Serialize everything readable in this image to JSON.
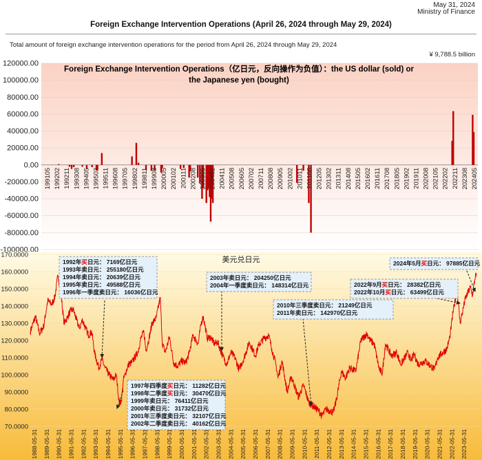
{
  "header": {
    "date": "May 31, 2024",
    "ministry": "Ministry of Finance",
    "title": "Foreign Exchange Intervention Operations (April 26, 2024 through May 29, 2024)",
    "description": "Total amount of foreign exchange intervention operations for the period from April 26, 2024 through May 29, 2024",
    "total_amount": "¥    9,788.5 billion"
  },
  "colors": {
    "bar_red": "#c00000",
    "line_red": "#e00000",
    "top_gradient_top": "#fbd2c4",
    "top_gradient_bottom": "#ffffff",
    "bottom_gradient_top": "#fffbe6",
    "bottom_gradient_bottom": "#f8bb3a",
    "callout_fill": "#e4f0fa",
    "callout_highlight": "#e00000"
  },
  "chart_data": [
    {
      "type": "bar",
      "title_line1": "Foreign Exchange Intervention Operations（亿日元，反向操作为负值）：the US dollar (sold)  or",
      "title_line2": "the Japanese yen (bought)",
      "ylim": [
        -100000,
        120000
      ],
      "yticks": [
        "120000.00",
        "100000.00",
        "80000.00",
        "60000.00",
        "40000.00",
        "20000.00",
        "0.00",
        "-20000.00",
        "-40000.00",
        "-60000.00",
        "-80000.00",
        "-100000.00"
      ],
      "categories": [
        "199105",
        "199202",
        "199211",
        "199308",
        "199405",
        "199502",
        "199511",
        "199608",
        "199705",
        "199802",
        "199811",
        "199908",
        "200005",
        "200102",
        "200111",
        "200208",
        "200305",
        "200402",
        "200411",
        "200508",
        "200605",
        "200702",
        "200711",
        "200808",
        "200905",
        "201002",
        "201011",
        "201108",
        "201205",
        "201302",
        "201311",
        "201408",
        "201505",
        "201602",
        "201611",
        "201708",
        "201805",
        "201902",
        "201911",
        "202008",
        "202105",
        "202202",
        "202211",
        "202308",
        "202405"
      ],
      "approx_monthly_values": [
        {
          "month": "199204",
          "value": 900
        },
        {
          "month": "199302",
          "value": -2200
        },
        {
          "month": "199304",
          "value": -4800
        },
        {
          "month": "199306",
          "value": -2600
        },
        {
          "month": "199402",
          "value": -2100
        },
        {
          "month": "199406",
          "value": -4800
        },
        {
          "month": "199411",
          "value": -2600
        },
        {
          "month": "199503",
          "value": -6700
        },
        {
          "month": "199504",
          "value": -5500
        },
        {
          "month": "199508",
          "value": 14000
        },
        {
          "month": "199712",
          "value": 10000
        },
        {
          "month": "199804",
          "value": 26000
        },
        {
          "month": "199806",
          "value": 2600
        },
        {
          "month": "199901",
          "value": -6200
        },
        {
          "month": "199906",
          "value": -7000
        },
        {
          "month": "199909",
          "value": -6200
        },
        {
          "month": "200003",
          "value": -9000
        },
        {
          "month": "200004",
          "value": -4400
        },
        {
          "month": "200109",
          "value": -4800
        },
        {
          "month": "200112",
          "value": -3700
        },
        {
          "month": "200205",
          "value": -15000
        },
        {
          "month": "200206",
          "value": -7700
        },
        {
          "month": "200301",
          "value": -15000
        },
        {
          "month": "200303",
          "value": -22000
        },
        {
          "month": "200305",
          "value": -40000
        },
        {
          "month": "200306",
          "value": -27000
        },
        {
          "month": "200309",
          "value": -45000
        },
        {
          "month": "200310",
          "value": -30000
        },
        {
          "month": "200311",
          "value": -28000
        },
        {
          "month": "200312",
          "value": -38000
        },
        {
          "month": "200401",
          "value": -67000
        },
        {
          "month": "200402",
          "value": -40000
        },
        {
          "month": "200403",
          "value": -45000
        },
        {
          "month": "201009",
          "value": -21249
        },
        {
          "month": "201103",
          "value": -6900
        },
        {
          "month": "201108",
          "value": -45000
        },
        {
          "month": "201110",
          "value": -80000
        },
        {
          "month": "202209",
          "value": 28382
        },
        {
          "month": "202210",
          "value": 63499
        },
        {
          "month": "202404",
          "value": 59185
        },
        {
          "month": "202405",
          "value": 38700
        }
      ]
    },
    {
      "type": "line",
      "title": "美元兑日元",
      "ylim": [
        70,
        170
      ],
      "yticks": [
        "170.0000",
        "160.0000",
        "150.0000",
        "140.0000",
        "130.0000",
        "120.0000",
        "110.0000",
        "100.0000",
        "90.0000",
        "80.0000",
        "70.0000"
      ],
      "xticks": [
        "1988-05-31",
        "1989-05-31",
        "1990-05-31",
        "1991-05-31",
        "1992-05-31",
        "1993-05-31",
        "1994-05-31",
        "1995-05-31",
        "1996-05-31",
        "1997-05-31",
        "1998-05-31",
        "1999-05-31",
        "2000-05-31",
        "2001-05-31",
        "2002-05-31",
        "2003-05-31",
        "2004-05-31",
        "2005-05-31",
        "2006-05-31",
        "2007-05-31",
        "2008-05-31",
        "2009-05-31",
        "2010-05-31",
        "2011-05-31",
        "2012-05-31",
        "2013-05-31",
        "2014-05-31",
        "2015-05-31",
        "2016-05-31",
        "2017-05-31",
        "2018-05-31",
        "2019-05-31",
        "2020-05-31",
        "2021-05-31",
        "2022-05-31",
        "2023-05-31"
      ],
      "approx_points": [
        [
          "1988-01",
          125
        ],
        [
          "1988-06",
          134
        ],
        [
          "1988-10",
          124
        ],
        [
          "1989-02",
          128
        ],
        [
          "1989-06",
          143
        ],
        [
          "1989-10",
          141
        ],
        [
          "1990-01",
          145
        ],
        [
          "1990-04",
          158
        ],
        [
          "1990-07",
          147
        ],
        [
          "1990-10",
          130
        ],
        [
          "1991-01",
          133
        ],
        [
          "1991-04",
          137
        ],
        [
          "1991-07",
          138
        ],
        [
          "1991-10",
          132
        ],
        [
          "1992-01",
          127
        ],
        [
          "1992-04",
          132
        ],
        [
          "1992-07",
          127
        ],
        [
          "1992-10",
          123
        ],
        [
          "1993-01",
          125
        ],
        [
          "1993-04",
          112
        ],
        [
          "1993-08",
          104
        ],
        [
          "1993-11",
          109
        ],
        [
          "1994-02",
          104
        ],
        [
          "1994-06",
          100
        ],
        [
          "1994-10",
          97
        ],
        [
          "1995-01",
          100
        ],
        [
          "1995-04",
          83
        ],
        [
          "1995-06",
          85
        ],
        [
          "1995-08",
          97
        ],
        [
          "1995-10",
          101
        ],
        [
          "1996-01",
          106
        ],
        [
          "1996-04",
          107
        ],
        [
          "1996-07",
          110
        ],
        [
          "1996-10",
          113
        ],
        [
          "1997-01",
          121
        ],
        [
          "1997-04",
          125
        ],
        [
          "1997-06",
          114
        ],
        [
          "1997-09",
          121
        ],
        [
          "1997-12",
          130
        ],
        [
          "1998-04",
          133
        ],
        [
          "1998-08",
          145
        ],
        [
          "1998-10",
          118
        ],
        [
          "1999-01",
          113
        ],
        [
          "1999-05",
          122
        ],
        [
          "1999-09",
          107
        ],
        [
          "2000-01",
          105
        ],
        [
          "2000-05",
          108
        ],
        [
          "2000-09",
          107
        ],
        [
          "2000-12",
          112
        ],
        [
          "2001-04",
          123
        ],
        [
          "2001-09",
          118
        ],
        [
          "2001-12",
          130
        ],
        [
          "2002-02",
          134
        ],
        [
          "2002-06",
          121
        ],
        [
          "2002-09",
          122
        ],
        [
          "2003-01",
          118
        ],
        [
          "2003-04",
          119
        ],
        [
          "2003-09",
          111
        ],
        [
          "2004-01",
          106
        ],
        [
          "2004-05",
          113
        ],
        [
          "2004-09",
          110
        ],
        [
          "2005-01",
          103
        ],
        [
          "2005-06",
          110
        ],
        [
          "2005-11",
          119
        ],
        [
          "2006-05",
          111
        ],
        [
          "2006-08",
          117
        ],
        [
          "2007-01",
          121
        ],
        [
          "2007-06",
          123
        ],
        [
          "2007-09",
          115
        ],
        [
          "2008-01",
          106
        ],
        [
          "2008-03",
          98
        ],
        [
          "2008-07",
          108
        ],
        [
          "2008-12",
          90
        ],
        [
          "2009-04",
          99
        ],
        [
          "2009-11",
          87
        ],
        [
          "2010-04",
          94
        ],
        [
          "2010-09",
          84
        ],
        [
          "2011-03",
          81
        ],
        [
          "2011-07",
          79
        ],
        [
          "2011-10",
          76
        ],
        [
          "2012-02",
          80
        ],
        [
          "2012-06",
          79
        ],
        [
          "2012-09",
          78
        ],
        [
          "2012-12",
          85
        ],
        [
          "2013-05",
          102
        ],
        [
          "2013-09",
          98
        ],
        [
          "2014-01",
          104
        ],
        [
          "2014-07",
          102
        ],
        [
          "2014-12",
          120
        ],
        [
          "2015-06",
          124
        ],
        [
          "2015-09",
          120
        ],
        [
          "2016-01",
          118
        ],
        [
          "2016-06",
          103
        ],
        [
          "2016-09",
          101
        ],
        [
          "2016-12",
          118
        ],
        [
          "2017-06",
          111
        ],
        [
          "2017-11",
          113
        ],
        [
          "2018-03",
          106
        ],
        [
          "2018-10",
          113
        ],
        [
          "2019-01",
          108
        ],
        [
          "2019-04",
          112
        ],
        [
          "2019-08",
          106
        ],
        [
          "2020-03",
          108
        ],
        [
          "2020-12",
          103
        ],
        [
          "2021-03",
          110
        ],
        [
          "2021-12",
          115
        ],
        [
          "2022-03",
          122
        ],
        [
          "2022-06",
          136
        ],
        [
          "2022-10",
          150
        ],
        [
          "2023-01",
          130
        ],
        [
          "2023-06",
          144
        ],
        [
          "2023-11",
          151
        ],
        [
          "2024-01",
          146
        ],
        [
          "2024-04",
          158
        ],
        [
          "2024-05",
          157
        ]
      ],
      "annotations": [
        {
          "id": "ann-1992-1996",
          "lines": [
            [
              "1992年",
              {
                "t": "买",
                "hl": true
              },
              "日元：  7169亿日元"
            ],
            [
              "1993年卖日元：  255180亿日元"
            ],
            [
              "1994年卖日元：  20639亿日元"
            ],
            [
              "1995年卖日元：  49588亿日元"
            ],
            [
              "1996年一季度卖日元：  16036亿日元"
            ]
          ]
        },
        {
          "id": "ann-2003-2004",
          "lines": [
            [
              "2003年卖日元：  204250亿日元"
            ],
            [
              "2004年一季度卖日元：  148314亿日元"
            ]
          ]
        },
        {
          "id": "ann-2010-2011",
          "lines": [
            [
              "2010年三季度卖日元：  21249亿日元"
            ],
            [
              "2011年卖日元：  142970亿日元"
            ]
          ]
        },
        {
          "id": "ann-2024",
          "lines": [
            [
              "2024年5月",
              {
                "t": "买",
                "hl": true
              },
              "日元：  97885亿日元"
            ]
          ]
        },
        {
          "id": "ann-2022",
          "lines": [
            [
              "2022年9月",
              {
                "t": "买",
                "hl": true
              },
              "日元：  28382亿日元"
            ],
            [
              "2022年10月",
              {
                "t": "买",
                "hl": true
              },
              "日元：  63499亿日元"
            ]
          ]
        },
        {
          "id": "ann-1997-2002",
          "lines": [
            [
              "1997年四季度",
              {
                "t": "买",
                "hl": true
              },
              "日元：  11282亿日元"
            ],
            [
              "1998年二季度",
              {
                "t": "买",
                "hl": true
              },
              "日元：  30470亿日元"
            ],
            [
              "1999年卖日元：  76411亿日元"
            ],
            [
              "2000年卖日元：  31732亿日元"
            ],
            [
              "2001年三季度卖日元：  32107亿日元"
            ],
            [
              "2002年二季度卖日元：  40162亿日元"
            ]
          ]
        }
      ]
    }
  ]
}
